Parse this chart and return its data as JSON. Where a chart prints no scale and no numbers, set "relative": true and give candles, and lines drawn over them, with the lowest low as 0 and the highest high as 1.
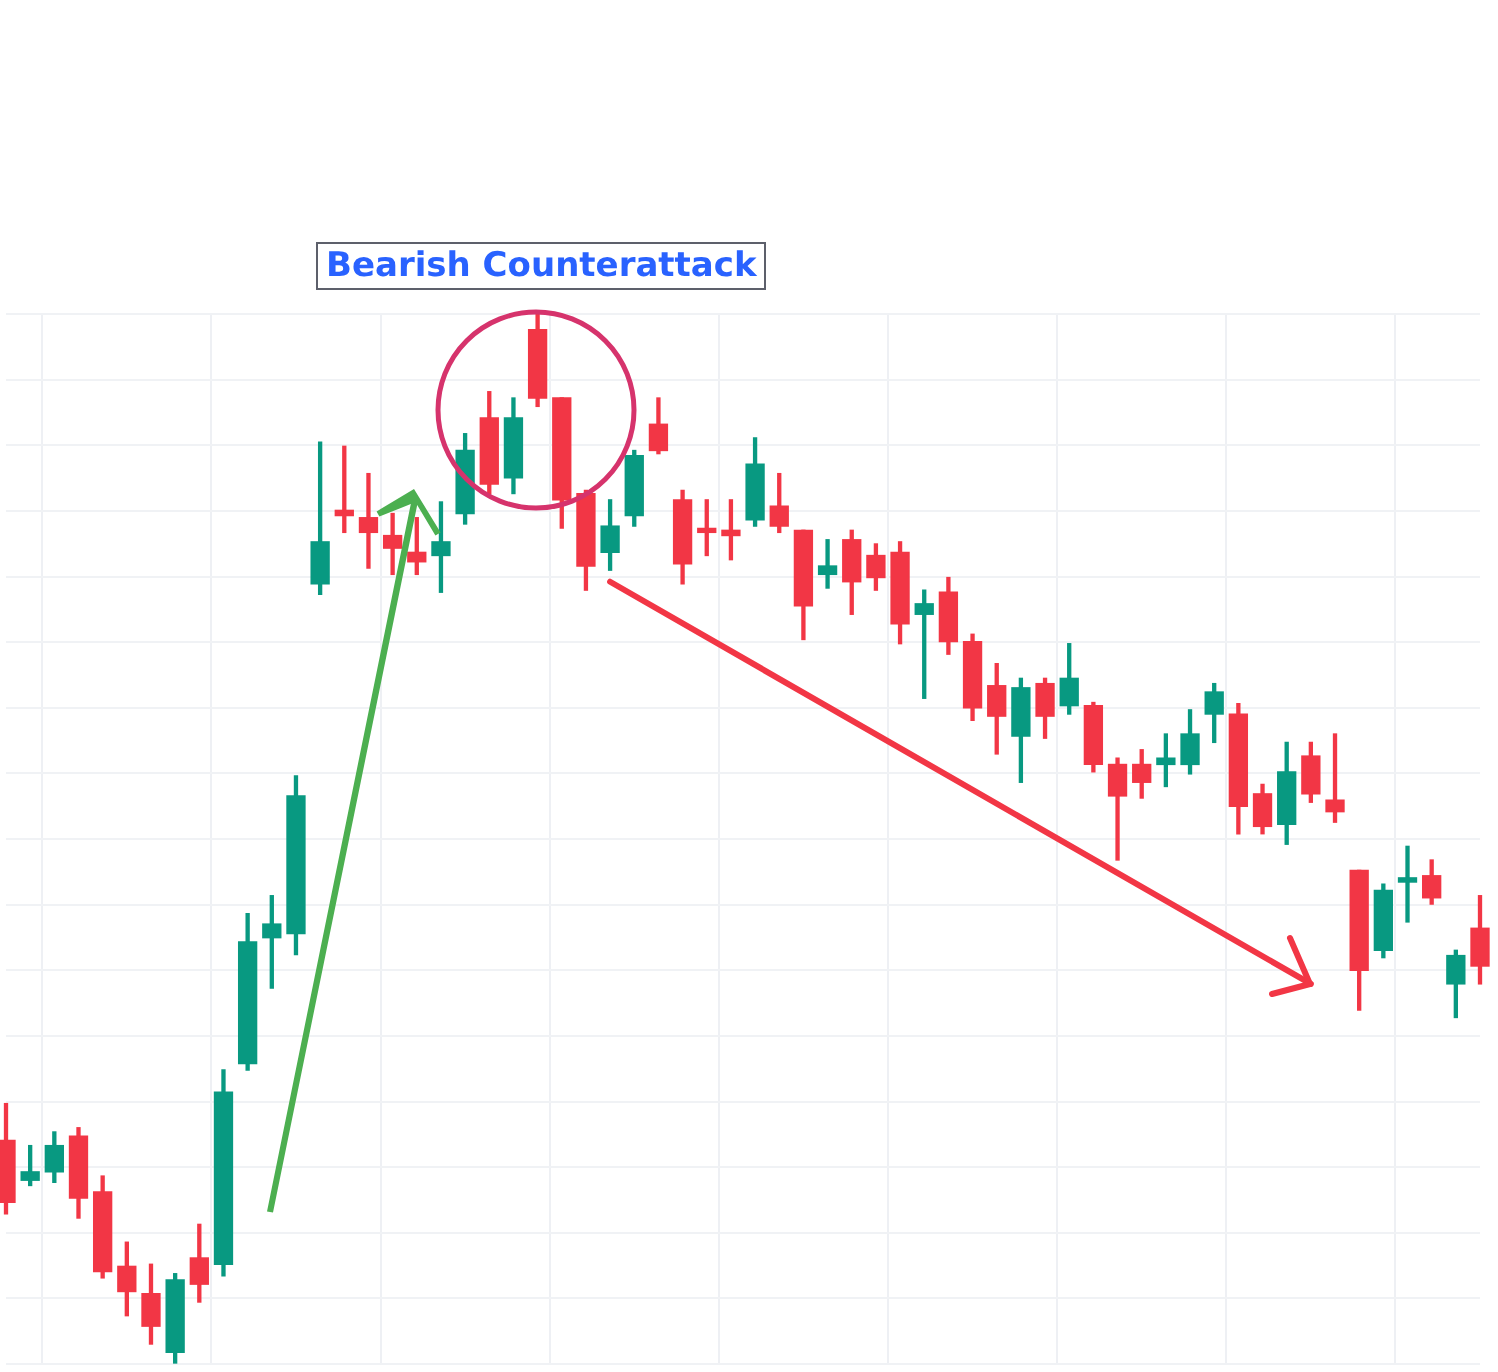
{
  "chart_data": {
    "type": "candlestick",
    "relative": true,
    "grid": true,
    "annotations": [
      "Bearish Counterattack"
    ],
    "series": [
      {
        "type": "line",
        "color": "#f23645",
        "values": [
          null,
          null,
          null,
          null,
          null,
          null,
          null,
          null,
          null,
          null,
          null,
          null,
          null,
          null,
          null,
          null,
          null,
          null,
          null,
          null,
          null,
          null,
          null,
          null,
          null,
          0.745,
          null,
          null,
          null,
          null,
          null,
          null,
          null,
          null,
          null,
          null,
          null,
          null,
          null,
          null,
          null,
          null,
          null,
          null,
          null,
          null,
          null,
          null,
          null,
          null,
          null,
          null,
          null,
          null,
          0.362,
          null,
          null,
          null,
          null,
          null,
          null,
          null
        ]
      }
    ],
    "categories": [
      null,
      null,
      null,
      null,
      null,
      null,
      null,
      null,
      null,
      null,
      null,
      null,
      null,
      null,
      null,
      null,
      null,
      null,
      null,
      null,
      null,
      null,
      null,
      null,
      null,
      null,
      null,
      null,
      null,
      null,
      null,
      null,
      null,
      null,
      null,
      null,
      null,
      null,
      null,
      null,
      null,
      null,
      null,
      null,
      null,
      null,
      null,
      null,
      null,
      null,
      null,
      null,
      null,
      null,
      null,
      null,
      null,
      null,
      null,
      null,
      null,
      null
    ],
    "ohlc": [
      [
        0.213,
        0.248,
        0.143,
        0.154
      ],
      [
        0.175,
        0.208,
        0.17,
        0.183
      ],
      [
        0.183,
        0.221,
        0.173,
        0.208
      ],
      [
        0.217,
        0.225,
        0.139,
        0.158
      ],
      [
        0.164,
        0.179,
        0.082,
        0.088
      ],
      [
        0.093,
        0.116,
        0.046,
        0.069
      ],
      [
        0.067,
        0.095,
        0.019,
        0.036
      ],
      [
        0.011,
        0.086,
        0,
        0.08
      ],
      [
        0.101,
        0.133,
        0.059,
        0.076
      ],
      [
        0.095,
        0.28,
        0.084,
        0.259
      ],
      [
        0.286,
        0.429,
        0.28,
        0.402
      ],
      [
        0.406,
        0.446,
        0.358,
        0.419
      ],
      [
        0.41,
        0.56,
        0.39,
        0.541
      ],
      [
        0.743,
        0.878,
        0.733,
        0.783
      ],
      [
        0.813,
        0.874,
        0.792,
        0.808
      ],
      [
        0.806,
        0.848,
        0.758,
        0.792
      ],
      [
        0.789,
        0.81,
        0.752,
        0.777
      ],
      [
        0.773,
        0.806,
        0.752,
        0.764
      ],
      [
        0.77,
        0.821,
        0.735,
        0.783
      ],
      [
        0.81,
        0.886,
        0.8,
        0.87
      ],
      [
        0.901,
        0.926,
        0.829,
        0.838
      ],
      [
        0.844,
        0.92,
        0.829,
        0.901
      ],
      [
        0.985,
        1,
        0.912,
        0.92
      ],
      [
        0.92,
        0.92,
        0.796,
        0.823
      ],
      [
        0.829,
        0.832,
        0.737,
        0.76
      ],
      [
        0.773,
        0.823,
        0.756,
        0.798
      ],
      [
        0.808,
        0.87,
        0.798,
        0.865
      ],
      [
        0.895,
        0.92,
        0.867,
        0.87
      ],
      [
        0.823,
        0.832,
        0.743,
        0.762
      ],
      [
        0.794,
        0.823,
        0.77,
        0.792
      ],
      [
        0.794,
        0.823,
        0.766,
        0.789
      ],
      [
        0.804,
        0.882,
        0.798,
        0.857
      ],
      [
        0.817,
        0.848,
        0.792,
        0.798
      ],
      [
        0.794,
        0.794,
        0.69,
        0.722
      ],
      [
        0.752,
        0.785,
        0.739,
        0.76
      ],
      [
        0.785,
        0.794,
        0.714,
        0.745
      ],
      [
        0.77,
        0.781,
        0.737,
        0.749
      ],
      [
        0.773,
        0.783,
        0.686,
        0.705
      ],
      [
        0.714,
        0.737,
        0.634,
        0.724
      ],
      [
        0.735,
        0.749,
        0.676,
        0.688
      ],
      [
        0.688,
        0.695,
        0.613,
        0.625
      ],
      [
        0.646,
        0.667,
        0.581,
        0.617
      ],
      [
        0.598,
        0.653,
        0.554,
        0.644
      ],
      [
        0.648,
        0.653,
        0.596,
        0.617
      ],
      [
        0.627,
        0.686,
        0.619,
        0.653
      ],
      [
        0.627,
        0.63,
        0.564,
        0.571
      ],
      [
        0.571,
        0.577,
        0.48,
        0.541
      ],
      [
        0.571,
        0.585,
        0.539,
        0.554
      ],
      [
        0.571,
        0.6,
        0.55,
        0.577
      ],
      [
        0.571,
        0.623,
        0.562,
        0.6
      ],
      [
        0.619,
        0.648,
        0.592,
        0.64
      ],
      [
        0.619,
        0.629,
        0.505,
        0.531
      ],
      [
        0.543,
        0.552,
        0.505,
        0.512
      ],
      [
        0.514,
        0.592,
        0.495,
        0.564
      ],
      [
        0.579,
        0.592,
        0.535,
        0.543
      ],
      [
        0.537,
        0.6,
        0.516,
        0.526
      ],
      [
        0.47,
        0.47,
        0.337,
        0.375
      ],
      [
        0.394,
        0.457,
        0.387,
        0.451
      ],
      [
        0.459,
        0.493,
        0.421,
        0.463
      ],
      [
        0.465,
        0.48,
        0.438,
        0.444
      ],
      [
        0.362,
        0.394,
        0.33,
        0.389
      ],
      [
        0.415,
        0.446,
        0.362,
        0.379
      ]
    ],
    "colors": [
      "#f23645",
      "#089981",
      "#089981",
      "#f23645",
      "#f23645",
      "#f23645",
      "#f23645",
      "#089981",
      "#f23645",
      "#089981",
      "#089981",
      "#089981",
      "#089981",
      "#089981",
      "#f23645",
      "#f23645",
      "#f23645",
      "#f23645",
      "#089981",
      "#089981",
      "#f23645",
      "#089981",
      "#f23645",
      "#f23645",
      "#f23645",
      "#089981",
      "#089981",
      "#f23645",
      "#f23645",
      "#f23645",
      "#f23645",
      "#089981",
      "#f23645",
      "#f23645",
      "#089981",
      "#f23645",
      "#f23645",
      "#f23645",
      "#089981",
      "#f23645",
      "#f23645",
      "#f23645",
      "#089981",
      "#f23645",
      "#089981",
      "#f23645",
      "#f23645",
      "#f23645",
      "#089981",
      "#089981",
      "#089981",
      "#f23645",
      "#f23645",
      "#089981",
      "#f23645",
      "#f23645",
      "#f23645",
      "#089981",
      "#089981",
      "#f23645",
      "#089981",
      "#f23645"
    ]
  }
}
